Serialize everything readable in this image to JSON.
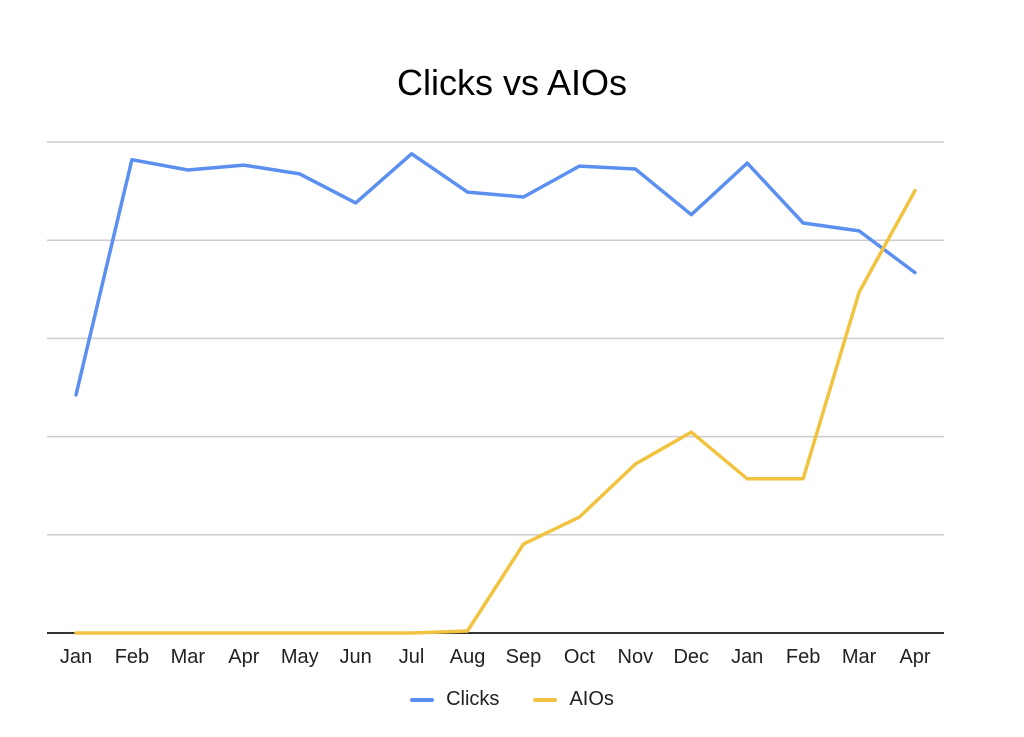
{
  "chart_data": {
    "type": "line",
    "title": "Clicks vs AIOs",
    "xlabel": "",
    "ylabel": "",
    "categories": [
      "Jan",
      "Feb",
      "Mar",
      "Apr",
      "May",
      "Jun",
      "Jul",
      "Aug",
      "Sep",
      "Oct",
      "Nov",
      "Dec",
      "Jan",
      "Feb",
      "Mar",
      "Apr"
    ],
    "ylim": [
      0,
      100
    ],
    "y_ticks": [
      0,
      20,
      40,
      60,
      80,
      100
    ],
    "y_tick_labels_visible": false,
    "grid": "horizontal",
    "legend_position": "bottom",
    "series": [
      {
        "name": "Clicks",
        "color": "#5b8ff0",
        "values": [
          48.5,
          96.4,
          94.3,
          95.3,
          93.5,
          87.6,
          97.6,
          89.8,
          88.8,
          95.1,
          94.5,
          85.2,
          95.7,
          83.5,
          81.9,
          73.4
        ]
      },
      {
        "name": "AIOs",
        "color": "#f1c340",
        "values": [
          0,
          0,
          0,
          0,
          0,
          0,
          0,
          0.4,
          18.1,
          23.6,
          34.4,
          40.9,
          31.4,
          31.4,
          69.4,
          90.1
        ]
      }
    ]
  }
}
